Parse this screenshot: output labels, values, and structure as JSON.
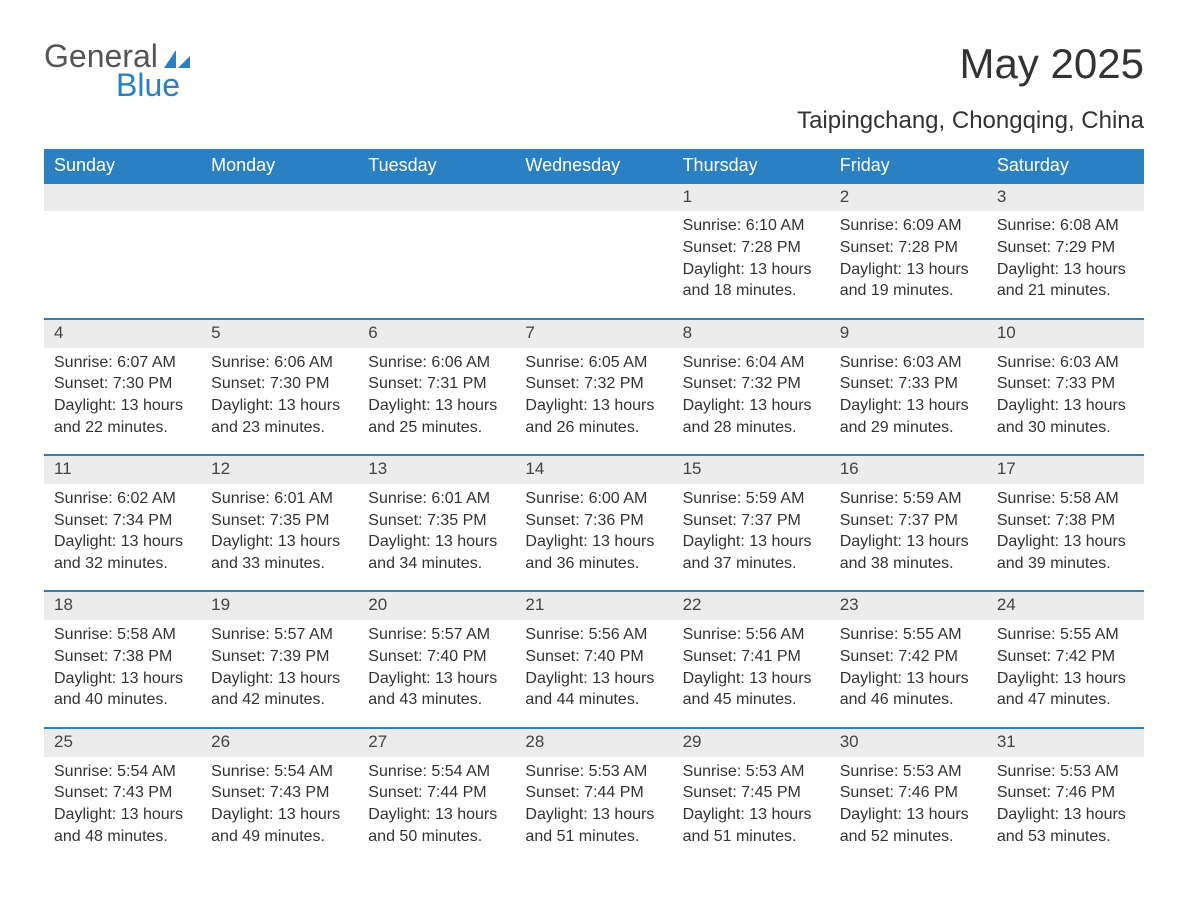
{
  "logo": {
    "word1": "General",
    "word2": "Blue"
  },
  "title": "May 2025",
  "subtitle": "Taipingchang, Chongqing, China",
  "colors": {
    "header_bg": "#2b7fc3",
    "header_text": "#ffffff",
    "daynum_bg": "#ececec",
    "rule": "#2b7fc3",
    "body_text": "#333333",
    "page_bg": "#ffffff"
  },
  "day_names": [
    "Sunday",
    "Monday",
    "Tuesday",
    "Wednesday",
    "Thursday",
    "Friday",
    "Saturday"
  ],
  "weeks": [
    [
      null,
      null,
      null,
      null,
      {
        "n": "1",
        "sunrise": "6:10 AM",
        "sunset": "7:28 PM",
        "dl1": "13 hours",
        "dl2": "and 18 minutes."
      },
      {
        "n": "2",
        "sunrise": "6:09 AM",
        "sunset": "7:28 PM",
        "dl1": "13 hours",
        "dl2": "and 19 minutes."
      },
      {
        "n": "3",
        "sunrise": "6:08 AM",
        "sunset": "7:29 PM",
        "dl1": "13 hours",
        "dl2": "and 21 minutes."
      }
    ],
    [
      {
        "n": "4",
        "sunrise": "6:07 AM",
        "sunset": "7:30 PM",
        "dl1": "13 hours",
        "dl2": "and 22 minutes."
      },
      {
        "n": "5",
        "sunrise": "6:06 AM",
        "sunset": "7:30 PM",
        "dl1": "13 hours",
        "dl2": "and 23 minutes."
      },
      {
        "n": "6",
        "sunrise": "6:06 AM",
        "sunset": "7:31 PM",
        "dl1": "13 hours",
        "dl2": "and 25 minutes."
      },
      {
        "n": "7",
        "sunrise": "6:05 AM",
        "sunset": "7:32 PM",
        "dl1": "13 hours",
        "dl2": "and 26 minutes."
      },
      {
        "n": "8",
        "sunrise": "6:04 AM",
        "sunset": "7:32 PM",
        "dl1": "13 hours",
        "dl2": "and 28 minutes."
      },
      {
        "n": "9",
        "sunrise": "6:03 AM",
        "sunset": "7:33 PM",
        "dl1": "13 hours",
        "dl2": "and 29 minutes."
      },
      {
        "n": "10",
        "sunrise": "6:03 AM",
        "sunset": "7:33 PM",
        "dl1": "13 hours",
        "dl2": "and 30 minutes."
      }
    ],
    [
      {
        "n": "11",
        "sunrise": "6:02 AM",
        "sunset": "7:34 PM",
        "dl1": "13 hours",
        "dl2": "and 32 minutes."
      },
      {
        "n": "12",
        "sunrise": "6:01 AM",
        "sunset": "7:35 PM",
        "dl1": "13 hours",
        "dl2": "and 33 minutes."
      },
      {
        "n": "13",
        "sunrise": "6:01 AM",
        "sunset": "7:35 PM",
        "dl1": "13 hours",
        "dl2": "and 34 minutes."
      },
      {
        "n": "14",
        "sunrise": "6:00 AM",
        "sunset": "7:36 PM",
        "dl1": "13 hours",
        "dl2": "and 36 minutes."
      },
      {
        "n": "15",
        "sunrise": "5:59 AM",
        "sunset": "7:37 PM",
        "dl1": "13 hours",
        "dl2": "and 37 minutes."
      },
      {
        "n": "16",
        "sunrise": "5:59 AM",
        "sunset": "7:37 PM",
        "dl1": "13 hours",
        "dl2": "and 38 minutes."
      },
      {
        "n": "17",
        "sunrise": "5:58 AM",
        "sunset": "7:38 PM",
        "dl1": "13 hours",
        "dl2": "and 39 minutes."
      }
    ],
    [
      {
        "n": "18",
        "sunrise": "5:58 AM",
        "sunset": "7:38 PM",
        "dl1": "13 hours",
        "dl2": "and 40 minutes."
      },
      {
        "n": "19",
        "sunrise": "5:57 AM",
        "sunset": "7:39 PM",
        "dl1": "13 hours",
        "dl2": "and 42 minutes."
      },
      {
        "n": "20",
        "sunrise": "5:57 AM",
        "sunset": "7:40 PM",
        "dl1": "13 hours",
        "dl2": "and 43 minutes."
      },
      {
        "n": "21",
        "sunrise": "5:56 AM",
        "sunset": "7:40 PM",
        "dl1": "13 hours",
        "dl2": "and 44 minutes."
      },
      {
        "n": "22",
        "sunrise": "5:56 AM",
        "sunset": "7:41 PM",
        "dl1": "13 hours",
        "dl2": "and 45 minutes."
      },
      {
        "n": "23",
        "sunrise": "5:55 AM",
        "sunset": "7:42 PM",
        "dl1": "13 hours",
        "dl2": "and 46 minutes."
      },
      {
        "n": "24",
        "sunrise": "5:55 AM",
        "sunset": "7:42 PM",
        "dl1": "13 hours",
        "dl2": "and 47 minutes."
      }
    ],
    [
      {
        "n": "25",
        "sunrise": "5:54 AM",
        "sunset": "7:43 PM",
        "dl1": "13 hours",
        "dl2": "and 48 minutes."
      },
      {
        "n": "26",
        "sunrise": "5:54 AM",
        "sunset": "7:43 PM",
        "dl1": "13 hours",
        "dl2": "and 49 minutes."
      },
      {
        "n": "27",
        "sunrise": "5:54 AM",
        "sunset": "7:44 PM",
        "dl1": "13 hours",
        "dl2": "and 50 minutes."
      },
      {
        "n": "28",
        "sunrise": "5:53 AM",
        "sunset": "7:44 PM",
        "dl1": "13 hours",
        "dl2": "and 51 minutes."
      },
      {
        "n": "29",
        "sunrise": "5:53 AM",
        "sunset": "7:45 PM",
        "dl1": "13 hours",
        "dl2": "and 51 minutes."
      },
      {
        "n": "30",
        "sunrise": "5:53 AM",
        "sunset": "7:46 PM",
        "dl1": "13 hours",
        "dl2": "and 52 minutes."
      },
      {
        "n": "31",
        "sunrise": "5:53 AM",
        "sunset": "7:46 PM",
        "dl1": "13 hours",
        "dl2": "and 53 minutes."
      }
    ]
  ],
  "labels": {
    "sunrise": "Sunrise: ",
    "sunset": "Sunset: ",
    "daylight": "Daylight: "
  }
}
